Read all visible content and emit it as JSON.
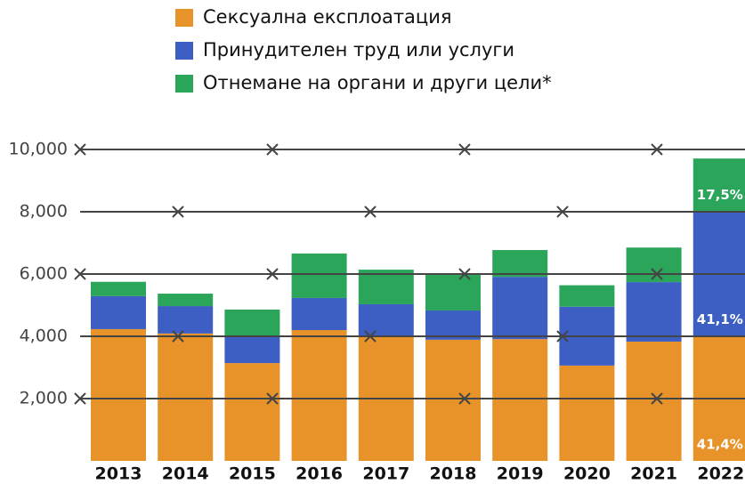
{
  "chart_data": {
    "type": "stacked_bar",
    "categories": [
      "2013",
      "2014",
      "2015",
      "2016",
      "2017",
      "2018",
      "2019",
      "2020",
      "2021",
      "2022"
    ],
    "series": [
      {
        "name": "Сексуална експлоатация",
        "color": "#e8922a",
        "values": [
          4230,
          4090,
          3140,
          4200,
          4000,
          3890,
          3910,
          3060,
          3830,
          4020
        ],
        "value_labels": [
          null,
          null,
          null,
          null,
          null,
          null,
          null,
          null,
          null,
          "41,4%"
        ]
      },
      {
        "name": "Принудителен труд или услуги",
        "color": "#3d5fc4",
        "values": [
          1060,
          880,
          860,
          1030,
          1030,
          940,
          2000,
          1890,
          1910,
          3990
        ],
        "value_labels": [
          null,
          null,
          null,
          null,
          null,
          null,
          null,
          null,
          null,
          "41,1%"
        ]
      },
      {
        "name": "Отнемане на органи и други цели*",
        "color": "#2aa55a",
        "values": [
          460,
          400,
          860,
          1430,
          1110,
          1140,
          860,
          690,
          1110,
          1700
        ],
        "value_labels": [
          null,
          null,
          null,
          null,
          null,
          null,
          null,
          null,
          null,
          "17,5%"
        ]
      }
    ],
    "ylim": [
      0,
      10000
    ],
    "yticks": [
      {
        "value": 2000,
        "label": "2,000"
      },
      {
        "value": 4000,
        "label": "4,000"
      },
      {
        "value": 6000,
        "label": "6,000"
      },
      {
        "value": 8000,
        "label": "8,000"
      },
      {
        "value": 10000,
        "label": "10,000"
      }
    ],
    "grid": true
  }
}
